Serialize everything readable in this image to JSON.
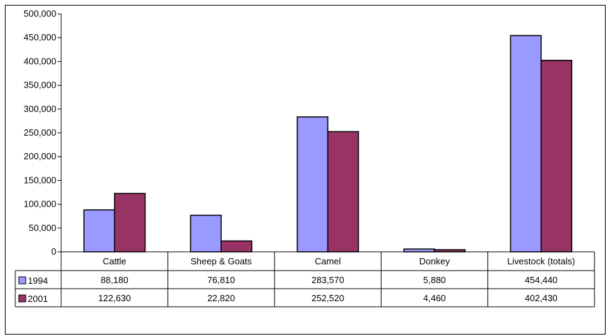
{
  "chart_data": {
    "type": "bar",
    "title": "",
    "xlabel": "",
    "ylabel": "",
    "categories": [
      "Cattle",
      "Sheep & Goats",
      "Camel",
      "Donkey",
      "Livestock (totals)"
    ],
    "series": [
      {
        "name": "1994",
        "color": "#9999ff",
        "values": [
          88180,
          76810,
          283570,
          5880,
          454440
        ],
        "labels": [
          "88,180",
          "76,810",
          "283,570",
          "5,880",
          "454,440"
        ]
      },
      {
        "name": "2001",
        "color": "#993366",
        "values": [
          122630,
          22820,
          252520,
          4460,
          402430
        ],
        "labels": [
          "122,630",
          "22,820",
          "252,520",
          "4,460",
          "402,430"
        ]
      }
    ],
    "ylim": [
      0,
      500000
    ],
    "yticks": [
      0,
      50000,
      100000,
      150000,
      200000,
      250000,
      300000,
      350000,
      400000,
      450000,
      500000
    ],
    "ytick_labels": [
      "0",
      "50,000",
      "100,000",
      "150,000",
      "200,000",
      "250,000",
      "300,000",
      "350,000",
      "400,000",
      "450,000",
      "500,000"
    ],
    "grid": false,
    "legend": "data-table",
    "data_table": true
  }
}
